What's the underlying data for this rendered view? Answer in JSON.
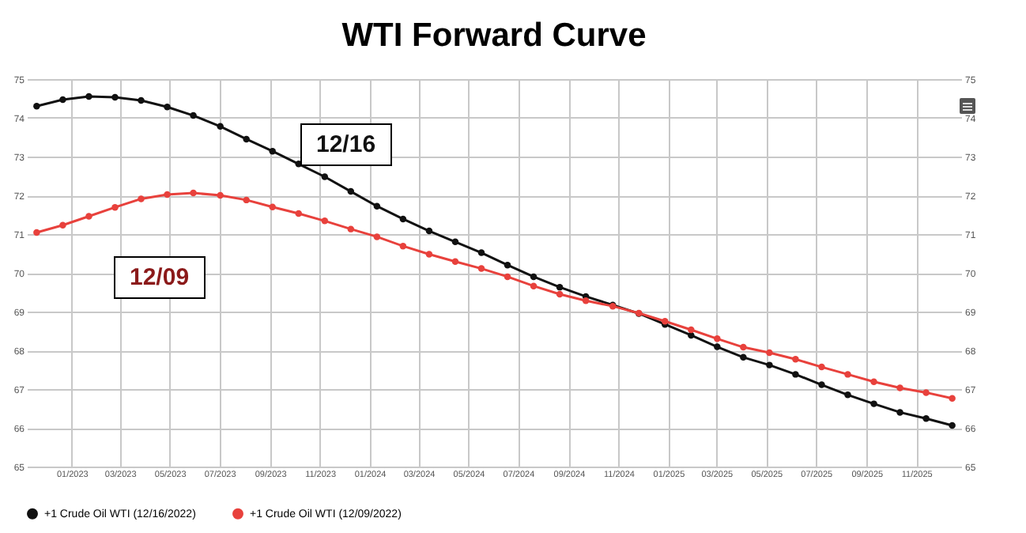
{
  "chart_data": {
    "type": "line",
    "title": "WTI Forward Curve",
    "x": [
      "2022-11-19",
      "2022-12-21",
      "2023-01-22",
      "2023-02-23",
      "2023-03-27",
      "2023-04-28",
      "2023-05-30",
      "2023-07-02",
      "2023-08-03",
      "2023-09-04",
      "2023-10-06",
      "2023-11-07",
      "2023-12-09",
      "2024-01-10",
      "2024-02-11",
      "2024-03-14",
      "2024-04-15",
      "2024-05-17",
      "2024-06-18",
      "2024-07-20",
      "2024-08-21",
      "2024-09-22",
      "2024-10-25",
      "2024-11-26",
      "2024-12-28",
      "2025-01-29",
      "2025-03-02",
      "2025-04-03",
      "2025-05-05",
      "2025-06-06",
      "2025-07-08",
      "2025-08-09",
      "2025-09-10",
      "2025-10-12",
      "2025-11-13",
      "2025-12-15"
    ],
    "series": [
      {
        "name": "+1 Crude Oil WTI (12/16/2022)",
        "color": "#111111",
        "values": [
          74.3,
          74.47,
          74.55,
          74.53,
          74.45,
          74.28,
          74.06,
          73.78,
          73.45,
          73.14,
          72.81,
          72.48,
          72.1,
          71.72,
          71.39,
          71.08,
          70.8,
          70.52,
          70.2,
          69.9,
          69.63,
          69.39,
          69.17,
          68.95,
          68.67,
          68.39,
          68.09,
          67.82,
          67.62,
          67.38,
          67.11,
          66.85,
          66.62,
          66.4,
          66.24,
          66.06
        ]
      },
      {
        "name": "+1 Crude Oil WTI (12/09/2022)",
        "color": "#e8413c",
        "values": [
          71.04,
          71.23,
          71.46,
          71.69,
          71.91,
          72.02,
          72.06,
          72.0,
          71.88,
          71.7,
          71.53,
          71.34,
          71.13,
          70.93,
          70.69,
          70.48,
          70.29,
          70.11,
          69.9,
          69.66,
          69.45,
          69.28,
          69.14,
          68.96,
          68.75,
          68.53,
          68.3,
          68.08,
          67.94,
          67.77,
          67.57,
          67.38,
          67.19,
          67.03,
          66.91,
          66.76
        ]
      }
    ],
    "annotations": [
      "12/16",
      "12/09"
    ],
    "xlim": [
      "2022-11-07",
      "2025-12-26"
    ],
    "xticks": [
      {
        "value": "2023-01-01",
        "label": "01/2023"
      },
      {
        "value": "2023-03-01",
        "label": "03/2023"
      },
      {
        "value": "2023-05-01",
        "label": "05/2023"
      },
      {
        "value": "2023-07-01",
        "label": "07/2023"
      },
      {
        "value": "2023-09-01",
        "label": "09/2023"
      },
      {
        "value": "2023-11-01",
        "label": "11/2023"
      },
      {
        "value": "2024-01-01",
        "label": "01/2024"
      },
      {
        "value": "2024-03-01",
        "label": "03/2024"
      },
      {
        "value": "2024-05-01",
        "label": "05/2024"
      },
      {
        "value": "2024-07-01",
        "label": "07/2024"
      },
      {
        "value": "2024-09-01",
        "label": "09/2024"
      },
      {
        "value": "2024-11-01",
        "label": "11/2024"
      },
      {
        "value": "2025-01-01",
        "label": "01/2025"
      },
      {
        "value": "2025-03-01",
        "label": "03/2025"
      },
      {
        "value": "2025-05-01",
        "label": "05/2025"
      },
      {
        "value": "2025-07-01",
        "label": "07/2025"
      },
      {
        "value": "2025-09-01",
        "label": "09/2025"
      },
      {
        "value": "2025-11-01",
        "label": "11/2025"
      }
    ],
    "ylim": [
      65,
      75
    ],
    "yticks": [
      65,
      66,
      67,
      68,
      69,
      70,
      71,
      72,
      73,
      74,
      75
    ],
    "y2lim": [
      65,
      75
    ],
    "y2ticks": [
      65,
      66,
      67,
      68,
      69,
      70,
      71,
      72,
      73,
      74,
      75
    ],
    "grid": true,
    "legend": "bottom",
    "marker": "circle",
    "line_style": "solid"
  }
}
